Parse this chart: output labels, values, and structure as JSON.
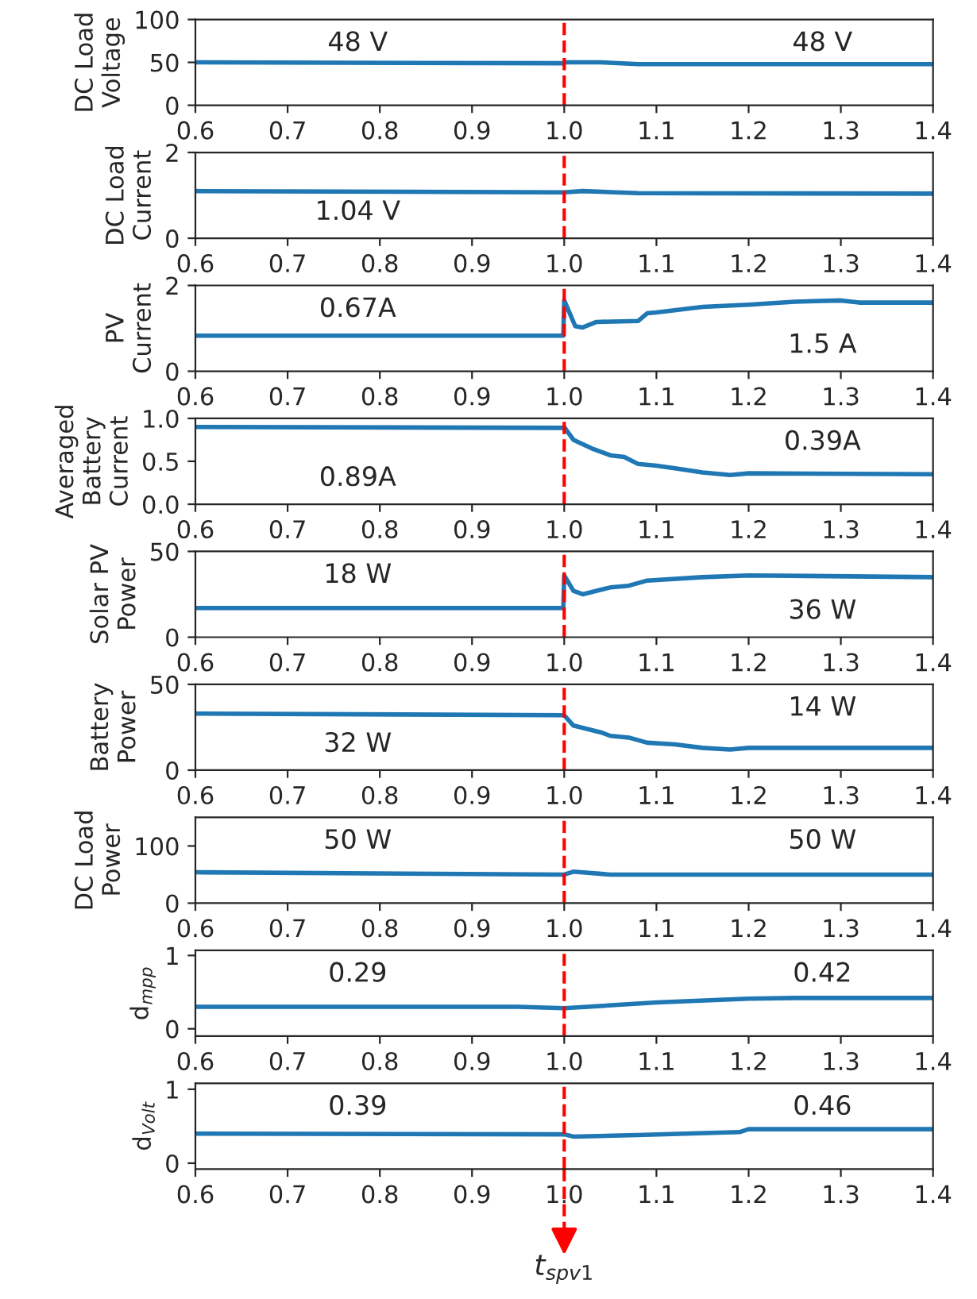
{
  "chart_data": [
    {
      "type": "line",
      "ylabel": "DC Load\nVoltage",
      "xlim": [
        0.6,
        1.4
      ],
      "xticks": [
        {
          "value": 0.6,
          "label": "0.6"
        },
        {
          "value": 0.7,
          "label": "0.7"
        },
        {
          "value": 0.8,
          "label": "0.8"
        },
        {
          "value": 0.9,
          "label": "0.9"
        },
        {
          "value": 1.0,
          "label": "1.0"
        },
        {
          "value": 1.1,
          "label": "1.1"
        },
        {
          "value": 1.2,
          "label": "1.2"
        },
        {
          "value": 1.3,
          "label": "1.3"
        },
        {
          "value": 1.4,
          "label": "1.4"
        }
      ],
      "ylim": [
        0,
        100
      ],
      "yticks": [
        0,
        50,
        100
      ],
      "series": [
        {
          "color": "#1f77b4",
          "x": [
            0.6,
            1.0,
            1.001,
            1.04,
            1.08,
            1.4
          ],
          "values": [
            50,
            49,
            50,
            50,
            48,
            48
          ]
        }
      ],
      "ref_lines": [
        {
          "axis": "x",
          "value": 1.0,
          "color": "#ff0000",
          "line_style": "dashed"
        }
      ],
      "annotations": [
        "48 V",
        "48 V"
      ]
    },
    {
      "type": "line",
      "ylabel": "DC Load\nCurrent",
      "xlim": [
        0.6,
        1.4
      ],
      "xticks": [
        {
          "value": 0.6,
          "label": "0.6"
        },
        {
          "value": 0.7,
          "label": "0.7"
        },
        {
          "value": 0.8,
          "label": "0.8"
        },
        {
          "value": 0.9,
          "label": "0.9"
        },
        {
          "value": 1.0,
          "label": "1.0"
        },
        {
          "value": 1.1,
          "label": "1.1"
        },
        {
          "value": 1.2,
          "label": "1.2"
        },
        {
          "value": 1.3,
          "label": "1.3"
        },
        {
          "value": 1.4,
          "label": "1.4"
        }
      ],
      "ylim": [
        0,
        2
      ],
      "yticks": [
        0,
        2
      ],
      "series": [
        {
          "color": "#1f77b4",
          "x": [
            0.6,
            1.0,
            1.02,
            1.08,
            1.4
          ],
          "values": [
            1.1,
            1.07,
            1.1,
            1.05,
            1.04
          ]
        }
      ],
      "ref_lines": [
        {
          "axis": "x",
          "value": 1.0,
          "color": "#ff0000",
          "line_style": "dashed"
        }
      ],
      "annotations": [
        "1.04 V"
      ]
    },
    {
      "type": "line",
      "ylabel": "PV\nCurrent",
      "xlim": [
        0.6,
        1.4
      ],
      "xticks": [
        {
          "value": 0.6,
          "label": "0.6"
        },
        {
          "value": 0.7,
          "label": "0.7"
        },
        {
          "value": 0.8,
          "label": "0.8"
        },
        {
          "value": 0.9,
          "label": "0.9"
        },
        {
          "value": 1.0,
          "label": "1.0"
        },
        {
          "value": 1.1,
          "label": "1.1"
        },
        {
          "value": 1.2,
          "label": "1.2"
        },
        {
          "value": 1.3,
          "label": "1.3"
        },
        {
          "value": 1.4,
          "label": "1.4"
        }
      ],
      "ylim": [
        0,
        2
      ],
      "yticks": [
        0,
        2
      ],
      "series": [
        {
          "color": "#1f77b4",
          "x": [
            0.6,
            0.999,
            1.0,
            1.005,
            1.012,
            1.02,
            1.035,
            1.08,
            1.09,
            1.1,
            1.15,
            1.2,
            1.25,
            1.3,
            1.32,
            1.4
          ],
          "values": [
            0.83,
            0.83,
            1.65,
            1.4,
            1.05,
            1.02,
            1.15,
            1.17,
            1.35,
            1.37,
            1.5,
            1.55,
            1.62,
            1.65,
            1.6,
            1.6
          ]
        }
      ],
      "ref_lines": [
        {
          "axis": "x",
          "value": 1.0,
          "color": "#ff0000",
          "line_style": "dashed"
        }
      ],
      "annotations": [
        "0.67A",
        "1.5 A"
      ]
    },
    {
      "type": "line",
      "ylabel": "Averaged\nBattery\nCurrent",
      "xlim": [
        0.6,
        1.4
      ],
      "xticks": [
        {
          "value": 0.6,
          "label": "0.6"
        },
        {
          "value": 0.7,
          "label": "0.7"
        },
        {
          "value": 0.8,
          "label": "0.8"
        },
        {
          "value": 0.9,
          "label": "0.9"
        },
        {
          "value": 1.0,
          "label": "1.0"
        },
        {
          "value": 1.1,
          "label": "1.1"
        },
        {
          "value": 1.2,
          "label": "1.2"
        },
        {
          "value": 1.3,
          "label": "1.3"
        },
        {
          "value": 1.4,
          "label": "1.4"
        }
      ],
      "ylim": [
        0,
        1
      ],
      "yticks": [
        {
          "value": 0,
          "label": "0.0"
        },
        {
          "value": 0.5,
          "label": "0.5"
        },
        {
          "value": 1,
          "label": "1.0"
        }
      ],
      "series": [
        {
          "color": "#1f77b4",
          "x": [
            0.6,
            0.999,
            1.0,
            1.01,
            1.03,
            1.05,
            1.065,
            1.08,
            1.1,
            1.12,
            1.15,
            1.18,
            1.2,
            1.4
          ],
          "values": [
            0.9,
            0.89,
            0.9,
            0.75,
            0.65,
            0.57,
            0.55,
            0.47,
            0.45,
            0.42,
            0.37,
            0.34,
            0.36,
            0.35
          ]
        }
      ],
      "ref_lines": [
        {
          "axis": "x",
          "value": 1.0,
          "color": "#ff0000",
          "line_style": "dashed"
        }
      ],
      "annotations": [
        "0.89A",
        "0.39A"
      ]
    },
    {
      "type": "line",
      "ylabel": "Solar PV\nPower",
      "xlim": [
        0.6,
        1.4
      ],
      "xticks": [
        {
          "value": 0.6,
          "label": "0.6"
        },
        {
          "value": 0.7,
          "label": "0.7"
        },
        {
          "value": 0.8,
          "label": "0.8"
        },
        {
          "value": 0.9,
          "label": "0.9"
        },
        {
          "value": 1.0,
          "label": "1.0"
        },
        {
          "value": 1.1,
          "label": "1.1"
        },
        {
          "value": 1.2,
          "label": "1.2"
        },
        {
          "value": 1.3,
          "label": "1.3"
        },
        {
          "value": 1.4,
          "label": "1.4"
        }
      ],
      "ylim": [
        0,
        50
      ],
      "yticks": [
        0,
        50
      ],
      "series": [
        {
          "color": "#1f77b4",
          "x": [
            0.6,
            0.999,
            1.0,
            1.01,
            1.02,
            1.05,
            1.07,
            1.09,
            1.15,
            1.2,
            1.4
          ],
          "values": [
            17,
            17,
            36,
            27,
            25,
            29,
            30,
            33,
            35,
            36,
            35
          ]
        }
      ],
      "ref_lines": [
        {
          "axis": "x",
          "value": 1.0,
          "color": "#ff0000",
          "line_style": "dashed"
        }
      ],
      "annotations": [
        "18 W",
        "36 W"
      ]
    },
    {
      "type": "line",
      "ylabel": "Battery\nPower",
      "xlim": [
        0.6,
        1.4
      ],
      "xticks": [
        {
          "value": 0.6,
          "label": "0.6"
        },
        {
          "value": 0.7,
          "label": "0.7"
        },
        {
          "value": 0.8,
          "label": "0.8"
        },
        {
          "value": 0.9,
          "label": "0.9"
        },
        {
          "value": 1.0,
          "label": "1.0"
        },
        {
          "value": 1.1,
          "label": "1.1"
        },
        {
          "value": 1.2,
          "label": "1.2"
        },
        {
          "value": 1.3,
          "label": "1.3"
        },
        {
          "value": 1.4,
          "label": "1.4"
        }
      ],
      "ylim": [
        0,
        50
      ],
      "yticks": [
        0,
        50
      ],
      "series": [
        {
          "color": "#1f77b4",
          "x": [
            0.6,
            0.999,
            1.0,
            1.01,
            1.04,
            1.05,
            1.07,
            1.09,
            1.12,
            1.15,
            1.18,
            1.2,
            1.4
          ],
          "values": [
            33,
            32,
            32,
            26,
            22,
            20,
            19,
            16,
            15,
            13,
            12,
            13,
            13
          ]
        }
      ],
      "ref_lines": [
        {
          "axis": "x",
          "value": 1.0,
          "color": "#ff0000",
          "line_style": "dashed"
        }
      ],
      "annotations": [
        "32 W",
        "14 W"
      ]
    },
    {
      "type": "line",
      "ylabel": "DC Load\nPower",
      "xlim": [
        0.6,
        1.4
      ],
      "xticks": [
        {
          "value": 0.6,
          "label": "0.6"
        },
        {
          "value": 0.7,
          "label": "0.7"
        },
        {
          "value": 0.8,
          "label": "0.8"
        },
        {
          "value": 0.9,
          "label": "0.9"
        },
        {
          "value": 1.0,
          "label": "1.0"
        },
        {
          "value": 1.1,
          "label": "1.1"
        },
        {
          "value": 1.2,
          "label": "1.2"
        },
        {
          "value": 1.3,
          "label": "1.3"
        },
        {
          "value": 1.4,
          "label": "1.4"
        }
      ],
      "ylim": [
        0,
        150
      ],
      "yticks": [
        0,
        100
      ],
      "series": [
        {
          "color": "#1f77b4",
          "x": [
            0.6,
            1.0,
            1.01,
            1.05,
            1.4
          ],
          "values": [
            54,
            50,
            55,
            50,
            50
          ]
        }
      ],
      "ref_lines": [
        {
          "axis": "x",
          "value": 1.0,
          "color": "#ff0000",
          "line_style": "dashed"
        }
      ],
      "annotations": [
        "50 W",
        "50 W"
      ]
    },
    {
      "type": "line",
      "ylabel": "d$_{mpp}$",
      "xlim": [
        0.6,
        1.4
      ],
      "xticks": [
        {
          "value": 0.6,
          "label": "0.6"
        },
        {
          "value": 0.7,
          "label": "0.7"
        },
        {
          "value": 0.8,
          "label": "0.8"
        },
        {
          "value": 0.9,
          "label": "0.9"
        },
        {
          "value": 1.0,
          "label": "1.0"
        },
        {
          "value": 1.1,
          "label": "1.1"
        },
        {
          "value": 1.2,
          "label": "1.2"
        },
        {
          "value": 1.3,
          "label": "1.3"
        },
        {
          "value": 1.4,
          "label": "1.4"
        }
      ],
      "ylim": [
        -0.1,
        1.07
      ],
      "yticks": [
        0,
        1
      ],
      "series": [
        {
          "color": "#1f77b4",
          "x": [
            0.6,
            0.95,
            1.0,
            1.1,
            1.2,
            1.25,
            1.4
          ],
          "values": [
            0.3,
            0.3,
            0.28,
            0.36,
            0.41,
            0.42,
            0.42
          ]
        }
      ],
      "ref_lines": [
        {
          "axis": "x",
          "value": 1.0,
          "color": "#ff0000",
          "line_style": "dashed"
        }
      ],
      "annotations": [
        "0.29",
        "0.42"
      ]
    },
    {
      "type": "line",
      "ylabel": "d$_{Volt}$",
      "xlim": [
        0.6,
        1.4
      ],
      "xticks": [
        {
          "value": 0.6,
          "label": "0.6"
        },
        {
          "value": 0.7,
          "label": "0.7"
        },
        {
          "value": 0.8,
          "label": "0.8"
        },
        {
          "value": 0.9,
          "label": "0.9"
        },
        {
          "value": 1.0,
          "label": "1.0"
        },
        {
          "value": 1.1,
          "label": "1.1"
        },
        {
          "value": 1.2,
          "label": "1.2"
        },
        {
          "value": 1.3,
          "label": "1.3"
        },
        {
          "value": 1.4,
          "label": "1.4"
        }
      ],
      "ylim": [
        -0.08,
        1.08
      ],
      "yticks": [
        0,
        1
      ],
      "series": [
        {
          "color": "#1f77b4",
          "x": [
            0.6,
            1.0,
            1.01,
            1.08,
            1.19,
            1.2,
            1.4
          ],
          "values": [
            0.4,
            0.39,
            0.36,
            0.38,
            0.42,
            0.46,
            0.46
          ]
        }
      ],
      "ref_lines": [
        {
          "axis": "x",
          "value": 1.0,
          "color": "#ff0000",
          "line_style": "dashed",
          "label": "t$_{spv1}$"
        }
      ],
      "annotations": [
        "0.39",
        "0.46"
      ]
    }
  ]
}
